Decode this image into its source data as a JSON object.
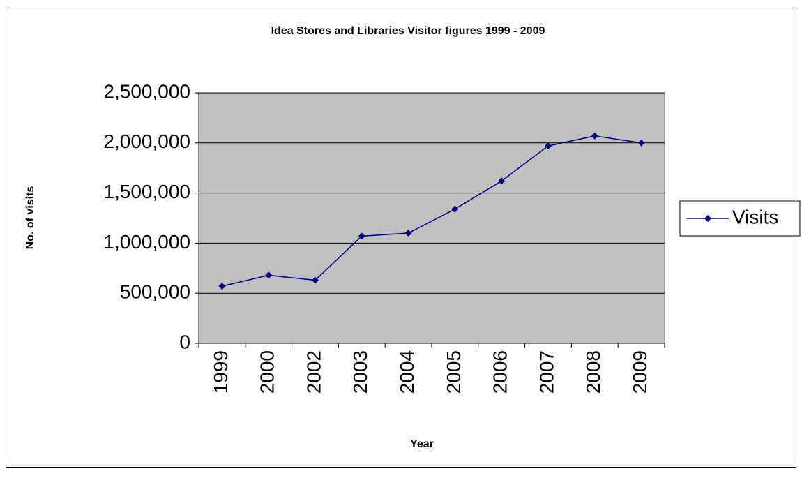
{
  "chart_data": {
    "type": "line",
    "title": "Idea Stores and Libraries Visitor figures 1999 - 2009",
    "x_label": "Year",
    "y_label": "No. of visits",
    "categories": [
      "1999",
      "2000",
      "2002",
      "2003",
      "2004",
      "2005",
      "2006",
      "2007",
      "2008",
      "2009"
    ],
    "series": [
      {
        "name": "Visits",
        "color": "#000080",
        "values": [
          570000,
          680000,
          630000,
          1070000,
          1100000,
          1340000,
          1620000,
          1970000,
          2070000,
          2000000
        ]
      }
    ],
    "ylim": [
      0,
      2500000
    ],
    "yticks": [
      0,
      {
        "value": 500000,
        "label": "500,000"
      },
      {
        "value": 1000000,
        "label": "1,000,000"
      },
      {
        "value": 1500000,
        "label": "1,500,000"
      },
      {
        "value": 2000000,
        "label": "2,000,000"
      },
      {
        "value": 2500000,
        "label": "2,500,000"
      }
    ],
    "grid": true,
    "legend": "right",
    "plot_background": "#c0c0c0"
  }
}
